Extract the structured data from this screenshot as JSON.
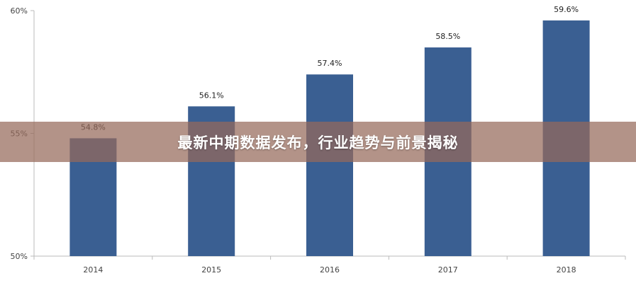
{
  "chart_data": {
    "type": "bar",
    "categories": [
      "2014",
      "2015",
      "2016",
      "2017",
      "2018"
    ],
    "values": [
      54.8,
      56.1,
      57.4,
      58.5,
      59.6
    ],
    "data_labels": [
      "54.8%",
      "56.1%",
      "57.4%",
      "58.5%",
      "59.6%"
    ],
    "yticks": [
      50,
      55,
      60
    ],
    "ytick_labels": [
      "50%",
      "55%",
      "60%"
    ],
    "ylim": [
      50,
      60
    ],
    "grid": false,
    "bar_color": "#3a5f92",
    "axis_color": "#bbbbbb"
  },
  "overlay": {
    "headline": "最新中期数据发布，行业趋势与前景揭秘",
    "color": "#96695a"
  }
}
